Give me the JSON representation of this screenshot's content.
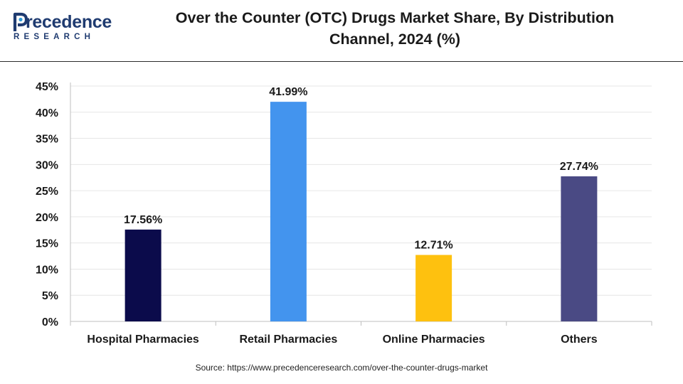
{
  "logo": {
    "word": "recedence",
    "sub": "RESEARCH"
  },
  "title_line1": "Over the Counter (OTC) Drugs Market Share, By Distribution",
  "title_line2": "Channel, 2024 (%)",
  "source": "Source: https://www.precedenceresearch.com/over-the-counter-drugs-market",
  "colors": {
    "logo": "#1f3b70",
    "logo_accent": "#2f9ad8"
  },
  "chart_data": {
    "type": "bar",
    "title": "Over the Counter (OTC) Drugs Market Share, By Distribution Channel, 2024 (%)",
    "categories": [
      "Hospital Pharmacies",
      "Retail Pharmacies",
      "Online Pharmacies",
      "Others"
    ],
    "values": [
      17.56,
      41.99,
      12.71,
      27.74
    ],
    "value_labels": [
      "17.56%",
      "41.99%",
      "12.71%",
      "27.74%"
    ],
    "colors": [
      "#0b0b4b",
      "#4394ee",
      "#fec10f",
      "#4a4a84"
    ],
    "ylim": [
      0,
      45
    ],
    "yticks": [
      0,
      5,
      10,
      15,
      20,
      25,
      30,
      35,
      40,
      45
    ],
    "ytick_labels": [
      "0%",
      "5%",
      "10%",
      "15%",
      "20%",
      "25%",
      "30%",
      "35%",
      "40%",
      "45%"
    ],
    "grid": true,
    "xlabel": "",
    "ylabel": ""
  }
}
